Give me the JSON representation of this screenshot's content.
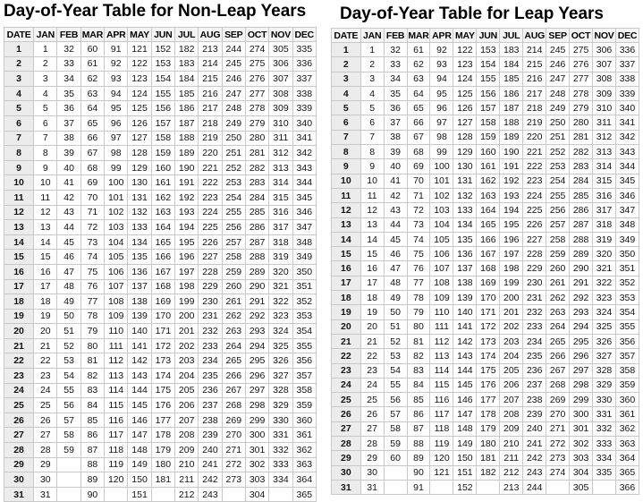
{
  "left": {
    "title": "Day-of-Year Table for Non-Leap Years",
    "headers": [
      "DATE",
      "JAN",
      "FEB",
      "MAR",
      "APR",
      "MAY",
      "JUN",
      "JUL",
      "AUG",
      "SEP",
      "OCT",
      "NOV",
      "DEC"
    ],
    "rows": [
      [
        "1",
        "1",
        "32",
        "60",
        "91",
        "121",
        "152",
        "182",
        "213",
        "244",
        "274",
        "305",
        "335"
      ],
      [
        "2",
        "2",
        "33",
        "61",
        "92",
        "122",
        "153",
        "183",
        "214",
        "245",
        "275",
        "306",
        "336"
      ],
      [
        "3",
        "3",
        "34",
        "62",
        "93",
        "123",
        "154",
        "184",
        "215",
        "246",
        "276",
        "307",
        "337"
      ],
      [
        "4",
        "4",
        "35",
        "63",
        "94",
        "124",
        "155",
        "185",
        "216",
        "247",
        "277",
        "308",
        "338"
      ],
      [
        "5",
        "5",
        "36",
        "64",
        "95",
        "125",
        "156",
        "186",
        "217",
        "248",
        "278",
        "309",
        "339"
      ],
      [
        "6",
        "6",
        "37",
        "65",
        "96",
        "126",
        "157",
        "187",
        "218",
        "249",
        "279",
        "310",
        "340"
      ],
      [
        "7",
        "7",
        "38",
        "66",
        "97",
        "127",
        "158",
        "188",
        "219",
        "250",
        "280",
        "311",
        "341"
      ],
      [
        "8",
        "8",
        "39",
        "67",
        "98",
        "128",
        "159",
        "189",
        "220",
        "251",
        "281",
        "312",
        "342"
      ],
      [
        "9",
        "9",
        "40",
        "68",
        "99",
        "129",
        "160",
        "190",
        "221",
        "252",
        "282",
        "313",
        "343"
      ],
      [
        "10",
        "10",
        "41",
        "69",
        "100",
        "130",
        "161",
        "191",
        "222",
        "253",
        "283",
        "314",
        "344"
      ],
      [
        "11",
        "11",
        "42",
        "70",
        "101",
        "131",
        "162",
        "192",
        "223",
        "254",
        "284",
        "315",
        "345"
      ],
      [
        "12",
        "12",
        "43",
        "71",
        "102",
        "132",
        "163",
        "193",
        "224",
        "255",
        "285",
        "316",
        "346"
      ],
      [
        "13",
        "13",
        "44",
        "72",
        "103",
        "133",
        "164",
        "194",
        "225",
        "256",
        "286",
        "317",
        "347"
      ],
      [
        "14",
        "14",
        "45",
        "73",
        "104",
        "134",
        "165",
        "195",
        "226",
        "257",
        "287",
        "318",
        "348"
      ],
      [
        "15",
        "15",
        "46",
        "74",
        "105",
        "135",
        "166",
        "196",
        "227",
        "258",
        "288",
        "319",
        "349"
      ],
      [
        "16",
        "16",
        "47",
        "75",
        "106",
        "136",
        "167",
        "197",
        "228",
        "259",
        "289",
        "320",
        "350"
      ],
      [
        "17",
        "17",
        "48",
        "76",
        "107",
        "137",
        "168",
        "198",
        "229",
        "260",
        "290",
        "321",
        "351"
      ],
      [
        "18",
        "18",
        "49",
        "77",
        "108",
        "138",
        "169",
        "199",
        "230",
        "261",
        "291",
        "322",
        "352"
      ],
      [
        "19",
        "19",
        "50",
        "78",
        "109",
        "139",
        "170",
        "200",
        "231",
        "262",
        "292",
        "323",
        "353"
      ],
      [
        "20",
        "20",
        "51",
        "79",
        "110",
        "140",
        "171",
        "201",
        "232",
        "263",
        "293",
        "324",
        "354"
      ],
      [
        "21",
        "21",
        "52",
        "80",
        "111",
        "141",
        "172",
        "202",
        "233",
        "264",
        "294",
        "325",
        "355"
      ],
      [
        "22",
        "22",
        "53",
        "81",
        "112",
        "142",
        "173",
        "203",
        "234",
        "265",
        "295",
        "326",
        "356"
      ],
      [
        "23",
        "23",
        "54",
        "82",
        "113",
        "143",
        "174",
        "204",
        "235",
        "266",
        "296",
        "327",
        "357"
      ],
      [
        "24",
        "24",
        "55",
        "83",
        "114",
        "144",
        "175",
        "205",
        "236",
        "267",
        "297",
        "328",
        "358"
      ],
      [
        "25",
        "25",
        "56",
        "84",
        "115",
        "145",
        "176",
        "206",
        "237",
        "268",
        "298",
        "329",
        "359"
      ],
      [
        "26",
        "26",
        "57",
        "85",
        "116",
        "146",
        "177",
        "207",
        "238",
        "269",
        "299",
        "330",
        "360"
      ],
      [
        "27",
        "27",
        "58",
        "86",
        "117",
        "147",
        "178",
        "208",
        "239",
        "270",
        "300",
        "331",
        "361"
      ],
      [
        "28",
        "28",
        "59",
        "87",
        "118",
        "148",
        "179",
        "209",
        "240",
        "271",
        "301",
        "332",
        "362"
      ],
      [
        "29",
        "29",
        "",
        "88",
        "119",
        "149",
        "180",
        "210",
        "241",
        "272",
        "302",
        "333",
        "363"
      ],
      [
        "30",
        "30",
        "",
        "89",
        "120",
        "150",
        "181",
        "211",
        "242",
        "273",
        "303",
        "334",
        "364"
      ],
      [
        "31",
        "31",
        "",
        "90",
        "",
        "151",
        "",
        "212",
        "243",
        "",
        "304",
        "",
        "365"
      ]
    ]
  },
  "right": {
    "title": "Day-of-Year Table for Leap Years",
    "headers": [
      "DATE",
      "JAN",
      "FEB",
      "MAR",
      "APR",
      "MAY",
      "JUN",
      "JUL",
      "AUG",
      "SEP",
      "OCT",
      "NOV",
      "DEC"
    ],
    "rows": [
      [
        "1",
        "1",
        "32",
        "61",
        "92",
        "122",
        "153",
        "183",
        "214",
        "245",
        "275",
        "306",
        "336"
      ],
      [
        "2",
        "2",
        "33",
        "62",
        "93",
        "123",
        "154",
        "184",
        "215",
        "246",
        "276",
        "307",
        "337"
      ],
      [
        "3",
        "3",
        "34",
        "63",
        "94",
        "124",
        "155",
        "185",
        "216",
        "247",
        "277",
        "308",
        "338"
      ],
      [
        "4",
        "4",
        "35",
        "64",
        "95",
        "125",
        "156",
        "186",
        "217",
        "248",
        "278",
        "309",
        "339"
      ],
      [
        "5",
        "5",
        "36",
        "65",
        "96",
        "126",
        "157",
        "187",
        "218",
        "249",
        "279",
        "310",
        "340"
      ],
      [
        "6",
        "6",
        "37",
        "66",
        "97",
        "127",
        "158",
        "188",
        "219",
        "250",
        "280",
        "311",
        "341"
      ],
      [
        "7",
        "7",
        "38",
        "67",
        "98",
        "128",
        "159",
        "189",
        "220",
        "251",
        "281",
        "312",
        "342"
      ],
      [
        "8",
        "8",
        "39",
        "68",
        "99",
        "129",
        "160",
        "190",
        "221",
        "252",
        "282",
        "313",
        "343"
      ],
      [
        "9",
        "9",
        "40",
        "69",
        "100",
        "130",
        "161",
        "191",
        "222",
        "253",
        "283",
        "314",
        "344"
      ],
      [
        "10",
        "10",
        "41",
        "70",
        "101",
        "131",
        "162",
        "192",
        "223",
        "254",
        "284",
        "315",
        "345"
      ],
      [
        "11",
        "11",
        "42",
        "71",
        "102",
        "132",
        "163",
        "193",
        "224",
        "255",
        "285",
        "316",
        "346"
      ],
      [
        "12",
        "12",
        "43",
        "72",
        "103",
        "133",
        "164",
        "194",
        "225",
        "256",
        "286",
        "317",
        "347"
      ],
      [
        "13",
        "13",
        "44",
        "73",
        "104",
        "134",
        "165",
        "195",
        "226",
        "257",
        "287",
        "318",
        "348"
      ],
      [
        "14",
        "14",
        "45",
        "74",
        "105",
        "135",
        "166",
        "196",
        "227",
        "258",
        "288",
        "319",
        "349"
      ],
      [
        "15",
        "15",
        "46",
        "75",
        "106",
        "136",
        "167",
        "197",
        "228",
        "259",
        "289",
        "320",
        "350"
      ],
      [
        "16",
        "16",
        "47",
        "76",
        "107",
        "137",
        "168",
        "198",
        "229",
        "260",
        "290",
        "321",
        "351"
      ],
      [
        "17",
        "17",
        "48",
        "77",
        "108",
        "138",
        "169",
        "199",
        "230",
        "261",
        "291",
        "322",
        "352"
      ],
      [
        "18",
        "18",
        "49",
        "78",
        "109",
        "139",
        "170",
        "200",
        "231",
        "262",
        "292",
        "323",
        "353"
      ],
      [
        "19",
        "19",
        "50",
        "79",
        "110",
        "140",
        "171",
        "201",
        "232",
        "263",
        "293",
        "324",
        "354"
      ],
      [
        "20",
        "20",
        "51",
        "80",
        "111",
        "141",
        "172",
        "202",
        "233",
        "264",
        "294",
        "325",
        "355"
      ],
      [
        "21",
        "21",
        "52",
        "81",
        "112",
        "142",
        "173",
        "203",
        "234",
        "265",
        "295",
        "326",
        "356"
      ],
      [
        "22",
        "22",
        "53",
        "82",
        "113",
        "143",
        "174",
        "204",
        "235",
        "266",
        "296",
        "327",
        "357"
      ],
      [
        "23",
        "23",
        "54",
        "83",
        "114",
        "144",
        "175",
        "205",
        "236",
        "267",
        "297",
        "328",
        "358"
      ],
      [
        "24",
        "24",
        "55",
        "84",
        "115",
        "145",
        "176",
        "206",
        "237",
        "268",
        "298",
        "329",
        "359"
      ],
      [
        "25",
        "25",
        "56",
        "85",
        "116",
        "146",
        "177",
        "207",
        "238",
        "269",
        "299",
        "330",
        "360"
      ],
      [
        "26",
        "26",
        "57",
        "86",
        "117",
        "147",
        "178",
        "208",
        "239",
        "270",
        "300",
        "331",
        "361"
      ],
      [
        "27",
        "27",
        "58",
        "87",
        "118",
        "148",
        "179",
        "209",
        "240",
        "271",
        "301",
        "332",
        "362"
      ],
      [
        "28",
        "28",
        "59",
        "88",
        "119",
        "149",
        "180",
        "210",
        "241",
        "272",
        "302",
        "333",
        "363"
      ],
      [
        "29",
        "29",
        "60",
        "89",
        "120",
        "150",
        "181",
        "211",
        "242",
        "273",
        "303",
        "334",
        "364"
      ],
      [
        "30",
        "30",
        "",
        "90",
        "121",
        "151",
        "182",
        "212",
        "243",
        "274",
        "304",
        "335",
        "365"
      ],
      [
        "31",
        "31",
        "",
        "91",
        "",
        "152",
        "",
        "213",
        "244",
        "",
        "305",
        "",
        "366"
      ]
    ]
  }
}
